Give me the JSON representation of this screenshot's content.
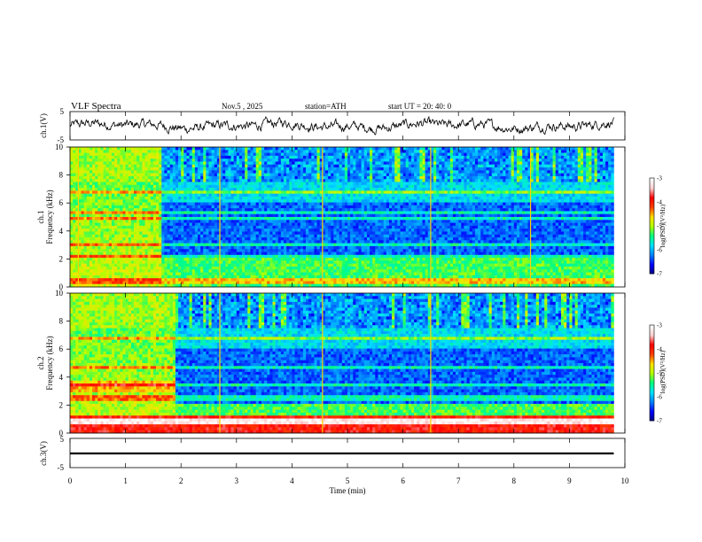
{
  "header": {
    "title": "VLF  Spectra",
    "date": "Nov.5  , 2025",
    "station": "station=ATH",
    "start": "start  UT  =   20: 40: 0"
  },
  "colors": {
    "axis": "#000000",
    "cmap": [
      "#00007a",
      "#0000ff",
      "#0080ff",
      "#00e0ff",
      "#00ff80",
      "#b0ff00",
      "#ffe000",
      "#ff4000",
      "#ff0000",
      "#ffd0d0",
      "#ffffff"
    ]
  },
  "chart_data": [
    {
      "id": "ch1-waveform",
      "type": "line",
      "ylabel": "ch.1(V)",
      "ylim": [
        -5,
        5
      ],
      "yticks": [
        "5",
        "-5"
      ],
      "xlim": [
        0,
        10
      ],
      "description_note": "time-domain amplitude trace, roughly -2.5 to 2 V"
    },
    {
      "id": "ch1-spectrogram",
      "type": "heatmap",
      "channel": "ch.1",
      "ylabel": "Frequency  (kHz)",
      "ylim": [
        0,
        10
      ],
      "yticks": [
        "0",
        "2",
        "4",
        "6",
        "8",
        "10"
      ],
      "xlim": [
        0,
        10
      ],
      "colorbar": {
        "label": "log(PSD)(V²/Hz)",
        "range": [
          -7,
          -3
        ],
        "ticks": [
          "-3",
          "-4",
          "-5",
          "-6",
          "-7"
        ]
      },
      "regime_change_min": 1.65,
      "lines_khz": [
        0.3,
        0.5,
        2.2,
        3.1,
        4.9,
        5.4,
        6.7
      ],
      "features_min": [
        0.15,
        2.7,
        4.55,
        6.5,
        8.3
      ]
    },
    {
      "id": "ch2-spectrogram",
      "type": "heatmap",
      "channel": "ch.2",
      "ylabel": "Frequency  (kHz)",
      "ylim": [
        0,
        10
      ],
      "yticks": [
        "0",
        "2",
        "4",
        "6",
        "8",
        "10"
      ],
      "xlim": [
        0,
        10
      ],
      "colorbar": {
        "label": "log(PSD)(V²/Hz)",
        "range": [
          -7,
          -3
        ],
        "ticks": [
          "-3",
          "-4",
          "-5",
          "-6",
          "-7"
        ]
      },
      "regime_change_min": 1.9,
      "lines_khz": [
        0.8,
        1.0,
        2.5,
        3.5,
        4.6,
        6.7
      ],
      "features_min": [
        2.7,
        4.55,
        6.5
      ]
    },
    {
      "id": "ch3-waveform",
      "type": "line",
      "ylabel": "ch.3(V)",
      "ylim": [
        -5,
        5
      ],
      "yticks": [
        "5",
        "-5"
      ],
      "xlim": [
        0,
        10
      ],
      "description_note": "flat trace near -1.5 V"
    }
  ],
  "xaxis": {
    "label": "Time  (min)",
    "ticks": [
      "0",
      "1",
      "2",
      "3",
      "4",
      "5",
      "6",
      "7",
      "8",
      "9",
      "10"
    ]
  }
}
